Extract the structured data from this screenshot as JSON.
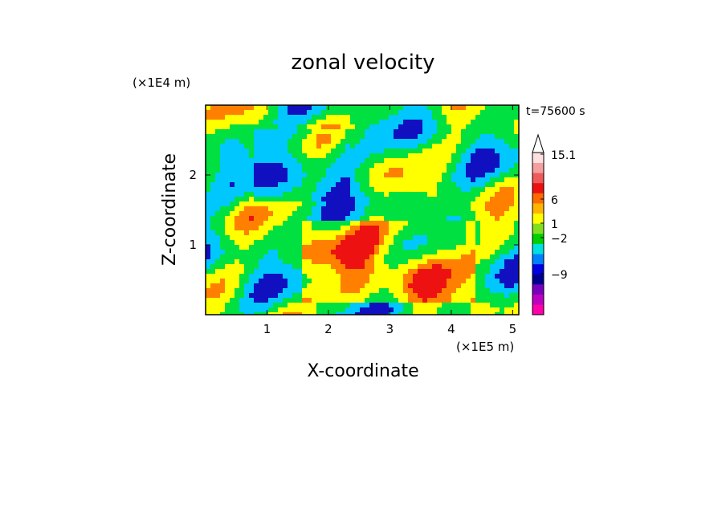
{
  "chart_data": {
    "type": "heatmap",
    "title": "zonal velocity",
    "xlabel": "X-coordinate",
    "ylabel": "Z-coordinate",
    "x_scale_label": "(×1E5 m)",
    "y_scale_label": "(×1E4 m)",
    "time_label": "t=75600 s",
    "xlim": [
      0,
      5.1
    ],
    "ylim": [
      0,
      3.0
    ],
    "x_ticks": [
      "1",
      "2",
      "3",
      "4",
      "5"
    ],
    "y_ticks": [
      "1",
      "2"
    ],
    "colorbar": {
      "labeled_values": [
        "15.1",
        "6",
        "1",
        "−2",
        "−9"
      ],
      "colors": [
        "#ff00aa",
        "#c000c0",
        "#7a00c0",
        "#000090",
        "#0000e0",
        "#0080ff",
        "#00e0e0",
        "#00d000",
        "#80e020",
        "#ffff00",
        "#ffb400",
        "#ff6a00",
        "#ee1111",
        "#f05a5a",
        "#f5a0a0",
        "#ffe0e0"
      ],
      "extend_top": true
    },
    "field_description_palette": {
      "strong_negative": "#1010c0",
      "negative": "#00c8ff",
      "weak": "#00e040",
      "positive": "#ffff00",
      "strong_positive": "#ff8000",
      "max": "#ee1111"
    }
  }
}
